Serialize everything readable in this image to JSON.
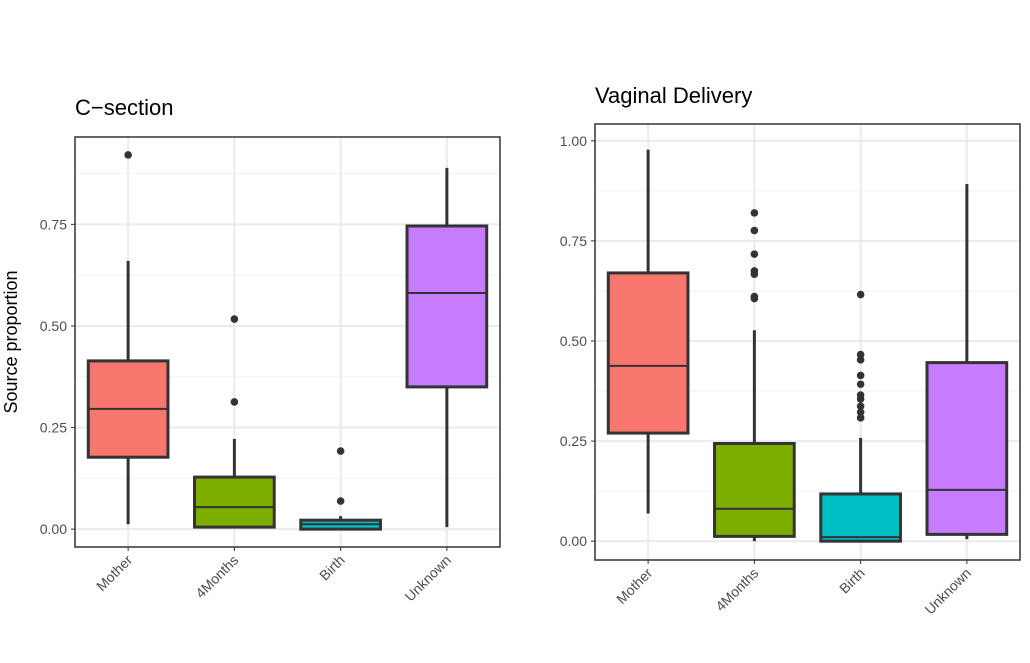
{
  "chart_data": [
    {
      "type": "box",
      "title": "C−section",
      "xlabel": "",
      "ylabel": "Source proportion",
      "ylim": [
        -0.044,
        0.965
      ],
      "yticks": [
        "0.00",
        "0.25",
        "0.50",
        "0.75"
      ],
      "grid": true,
      "categories": [
        "Mother",
        "4Months",
        "Birth",
        "Unknown"
      ],
      "colors": [
        "#F8766D",
        "#7CAE00",
        "#00BFC4",
        "#C77CFF"
      ],
      "boxes": [
        {
          "low": 0.012,
          "q1": 0.177,
          "median": 0.296,
          "q3": 0.414,
          "high": 0.66,
          "outliers": [
            0.921
          ]
        },
        {
          "low": 0.003,
          "q1": 0.005,
          "median": 0.054,
          "q3": 0.128,
          "high": 0.222,
          "outliers": [
            0.313,
            0.517
          ]
        },
        {
          "low": 0.0,
          "q1": 0.0,
          "median": 0.012,
          "q3": 0.022,
          "high": 0.032,
          "outliers": [
            0.069,
            0.192
          ]
        },
        {
          "low": 0.005,
          "q1": 0.35,
          "median": 0.581,
          "q3": 0.746,
          "high": 0.889,
          "outliers": []
        }
      ]
    },
    {
      "type": "box",
      "title": "Vaginal Delivery",
      "xlabel": "",
      "ylabel": "",
      "ylim": [
        -0.047,
        1.042
      ],
      "yticks": [
        "0.00",
        "0.25",
        "0.50",
        "0.75",
        "1.00"
      ],
      "grid": true,
      "categories": [
        "Mother",
        "4Months",
        "Birth",
        "Unknown"
      ],
      "colors": [
        "#F8766D",
        "#7CAE00",
        "#00BFC4",
        "#C77CFF"
      ],
      "boxes": [
        {
          "low": 0.069,
          "q1": 0.27,
          "median": 0.438,
          "q3": 0.67,
          "high": 0.978,
          "outliers": []
        },
        {
          "low": 0.0,
          "q1": 0.012,
          "median": 0.081,
          "q3": 0.244,
          "high": 0.527,
          "outliers": [
            0.606,
            0.611,
            0.667,
            0.675,
            0.717,
            0.776,
            0.82
          ]
        },
        {
          "low": 0.0,
          "q1": 0.0,
          "median": 0.01,
          "q3": 0.118,
          "high": 0.258,
          "outliers": [
            0.308,
            0.322,
            0.337,
            0.355,
            0.365,
            0.392,
            0.414,
            0.453,
            0.466,
            0.616
          ]
        },
        {
          "low": 0.005,
          "q1": 0.017,
          "median": 0.128,
          "q3": 0.446,
          "high": 0.892,
          "outliers": []
        }
      ]
    }
  ]
}
